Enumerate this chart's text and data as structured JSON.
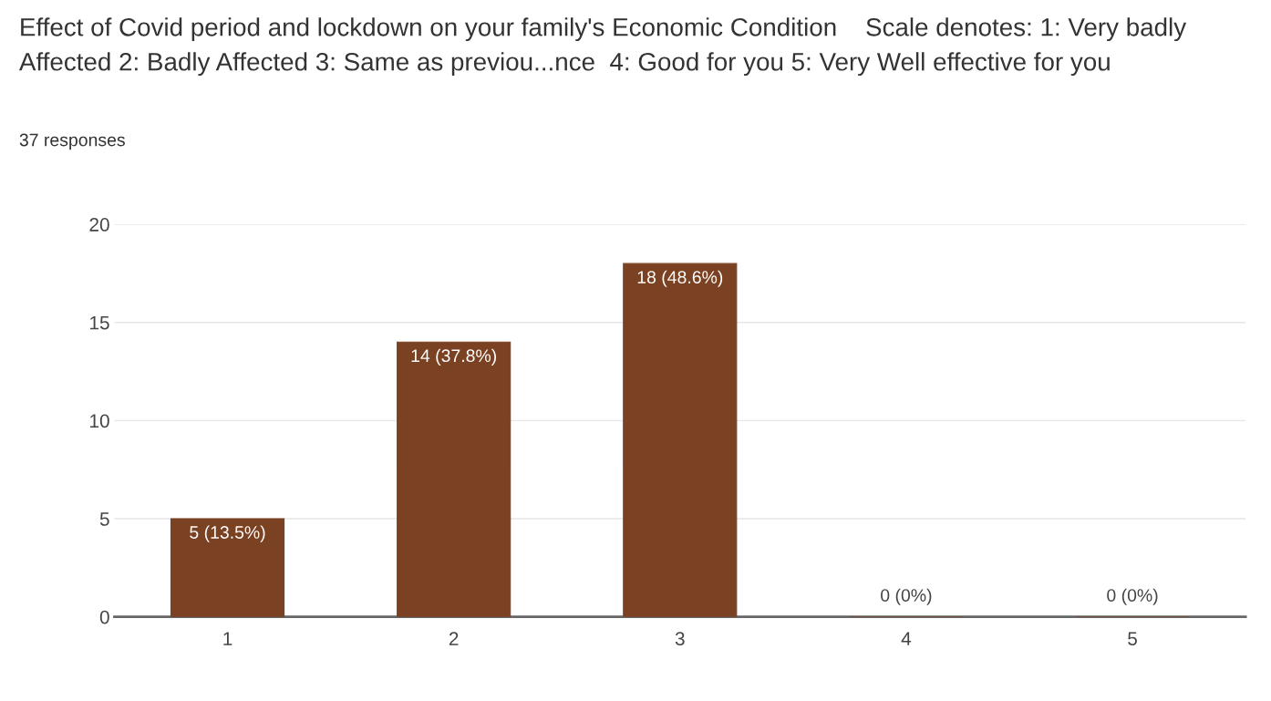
{
  "chart_data": {
    "type": "bar",
    "title": "Effect of Covid period and lockdown on your family's Economic Condition    Scale denotes: 1: Very badly Affected 2: Badly Affected 3: Same as previou...nce  4: Good for you 5: Very Well effective for you",
    "subtitle": "37 responses",
    "categories": [
      "1",
      "2",
      "3",
      "4",
      "5"
    ],
    "values": [
      5,
      14,
      18,
      0,
      0
    ],
    "value_labels": [
      "5 (13.5%)",
      "14 (37.8%)",
      "18 (48.6%)",
      "0 (0%)",
      "0 (0%)"
    ],
    "color": "#7b4123",
    "ylim": [
      0,
      20
    ],
    "yticks": [
      0,
      5,
      10,
      15,
      20
    ],
    "grid": "y"
  }
}
